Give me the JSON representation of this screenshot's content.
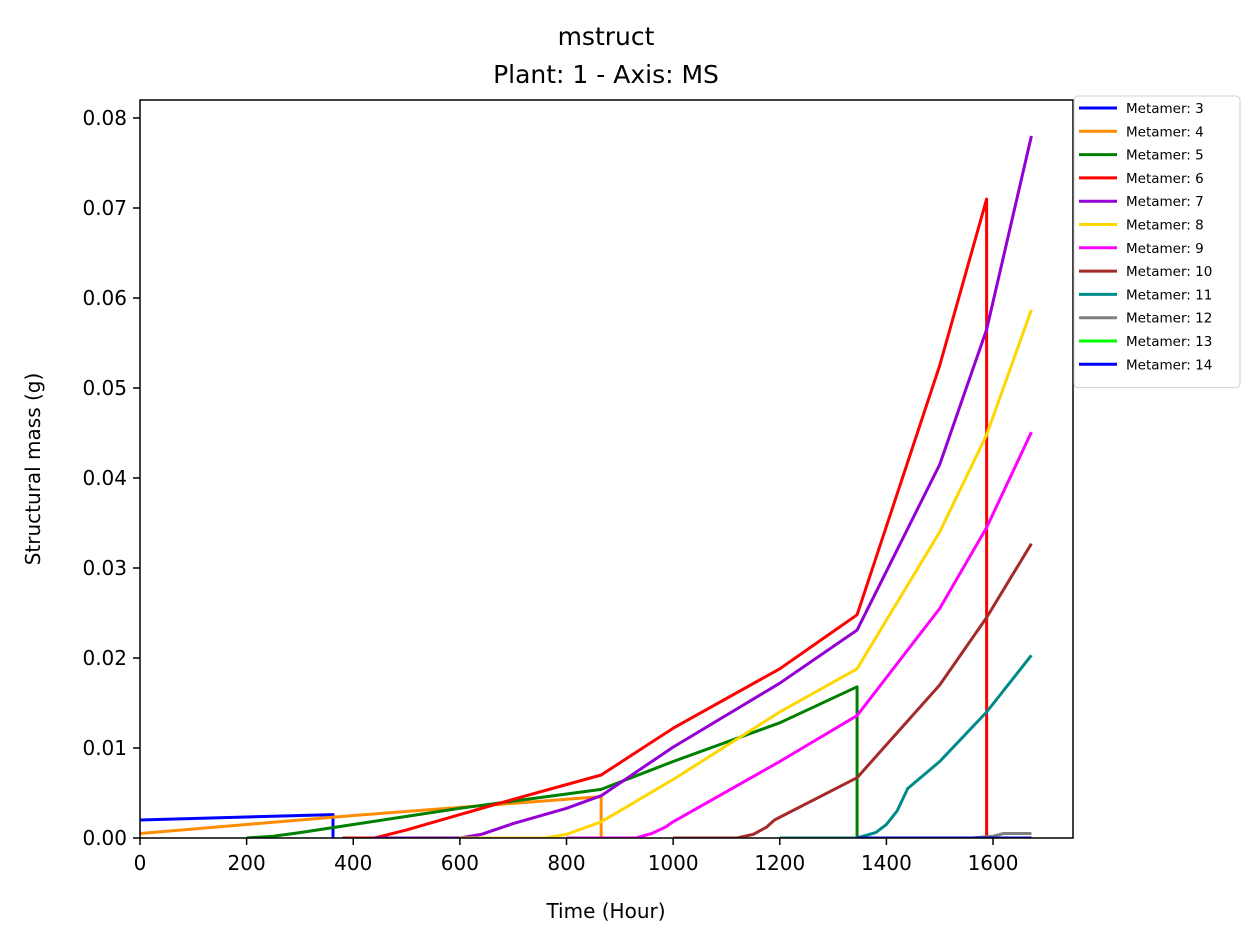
{
  "chart_data": {
    "type": "line",
    "title": "mstruct",
    "subtitle": "Plant: 1 - Axis: MS",
    "xlabel": "Time (Hour)",
    "ylabel": "Structural mass (g)",
    "xlim": [
      0,
      1750
    ],
    "ylim": [
      0,
      0.082
    ],
    "xticks": [
      0,
      200,
      400,
      600,
      800,
      1000,
      1200,
      1400,
      1600
    ],
    "yticks": [
      0.0,
      0.01,
      0.02,
      0.03,
      0.04,
      0.05,
      0.06,
      0.07,
      0.08
    ],
    "xtick_labels": [
      "0",
      "200",
      "400",
      "600",
      "800",
      "1000",
      "1200",
      "1400",
      "1600"
    ],
    "ytick_labels": [
      "0.00",
      "0.01",
      "0.02",
      "0.03",
      "0.04",
      "0.05",
      "0.06",
      "0.07",
      "0.08"
    ],
    "grid": false,
    "legend_position": "outside-top-right",
    "series": [
      {
        "name": "Metamer: 3",
        "color": "#0000ff",
        "points": [
          [
            0,
            0.002
          ],
          [
            362,
            0.0026
          ],
          [
            362,
            0.0
          ]
        ]
      },
      {
        "name": "Metamer: 4",
        "color": "#ff8c00",
        "points": [
          [
            0,
            0.0005
          ],
          [
            200,
            0.0015
          ],
          [
            400,
            0.0025
          ],
          [
            600,
            0.0034
          ],
          [
            865,
            0.0046
          ],
          [
            865,
            0.0
          ]
        ]
      },
      {
        "name": "Metamer: 5",
        "color": "#008000",
        "points": [
          [
            200,
            0.0
          ],
          [
            250,
            0.0002
          ],
          [
            300,
            0.0006
          ],
          [
            400,
            0.0015
          ],
          [
            500,
            0.0024
          ],
          [
            600,
            0.0033
          ],
          [
            700,
            0.0041
          ],
          [
            865,
            0.0054
          ],
          [
            1000,
            0.0085
          ],
          [
            1200,
            0.0128
          ],
          [
            1345,
            0.0168
          ],
          [
            1345,
            0.0
          ]
        ]
      },
      {
        "name": "Metamer: 6",
        "color": "#ff0000",
        "points": [
          [
            380,
            0.0
          ],
          [
            440,
            0.0
          ],
          [
            460,
            0.0003
          ],
          [
            500,
            0.0009
          ],
          [
            600,
            0.0026
          ],
          [
            700,
            0.0043
          ],
          [
            865,
            0.007
          ],
          [
            1000,
            0.0122
          ],
          [
            1200,
            0.0188
          ],
          [
            1345,
            0.0248
          ],
          [
            1500,
            0.0525
          ],
          [
            1588,
            0.071
          ],
          [
            1588,
            0.0
          ]
        ]
      },
      {
        "name": "Metamer: 7",
        "color": "#9400d3",
        "points": [
          [
            440,
            0.0
          ],
          [
            600,
            0.0
          ],
          [
            640,
            0.0004
          ],
          [
            700,
            0.0016
          ],
          [
            800,
            0.0033
          ],
          [
            865,
            0.0047
          ],
          [
            1000,
            0.0101
          ],
          [
            1200,
            0.0172
          ],
          [
            1345,
            0.0231
          ],
          [
            1500,
            0.0415
          ],
          [
            1588,
            0.0565
          ],
          [
            1672,
            0.078
          ]
        ]
      },
      {
        "name": "Metamer: 8",
        "color": "#ffd700",
        "points": [
          [
            600,
            0.0
          ],
          [
            760,
            0.0
          ],
          [
            800,
            0.0004
          ],
          [
            865,
            0.0018
          ],
          [
            1000,
            0.0065
          ],
          [
            1200,
            0.014
          ],
          [
            1345,
            0.0188
          ],
          [
            1500,
            0.034
          ],
          [
            1588,
            0.0448
          ],
          [
            1672,
            0.0587
          ]
        ]
      },
      {
        "name": "Metamer: 9",
        "color": "#ff00ff",
        "points": [
          [
            800,
            0.0
          ],
          [
            930,
            0.0
          ],
          [
            960,
            0.0005
          ],
          [
            985,
            0.0012
          ],
          [
            1000,
            0.0018
          ],
          [
            1200,
            0.0085
          ],
          [
            1345,
            0.0136
          ],
          [
            1500,
            0.0255
          ],
          [
            1588,
            0.0345
          ],
          [
            1672,
            0.0451
          ]
        ]
      },
      {
        "name": "Metamer: 10",
        "color": "#a52a2a",
        "points": [
          [
            1000,
            0.0
          ],
          [
            1120,
            0.0
          ],
          [
            1150,
            0.0004
          ],
          [
            1175,
            0.0012
          ],
          [
            1190,
            0.002
          ],
          [
            1345,
            0.0067
          ],
          [
            1500,
            0.017
          ],
          [
            1588,
            0.0245
          ],
          [
            1672,
            0.0327
          ]
        ]
      },
      {
        "name": "Metamer: 11",
        "color": "#008b8b",
        "points": [
          [
            1200,
            0.0
          ],
          [
            1345,
            0.0
          ],
          [
            1380,
            0.0006
          ],
          [
            1400,
            0.0015
          ],
          [
            1420,
            0.003
          ],
          [
            1440,
            0.0055
          ],
          [
            1500,
            0.0085
          ],
          [
            1588,
            0.014
          ],
          [
            1672,
            0.0203
          ]
        ]
      },
      {
        "name": "Metamer: 12",
        "color": "#808080",
        "points": [
          [
            1560,
            0.0
          ],
          [
            1600,
            0.0002
          ],
          [
            1620,
            0.0005
          ],
          [
            1672,
            0.0005
          ]
        ]
      },
      {
        "name": "Metamer: 13",
        "color": "#00ff00",
        "points": [
          [
            1588,
            0.0
          ],
          [
            1672,
            0.0
          ]
        ]
      },
      {
        "name": "Metamer: 14",
        "color": "#0000ff",
        "points": [
          [
            1345,
            0.0
          ],
          [
            1672,
            0.0
          ]
        ]
      }
    ]
  }
}
